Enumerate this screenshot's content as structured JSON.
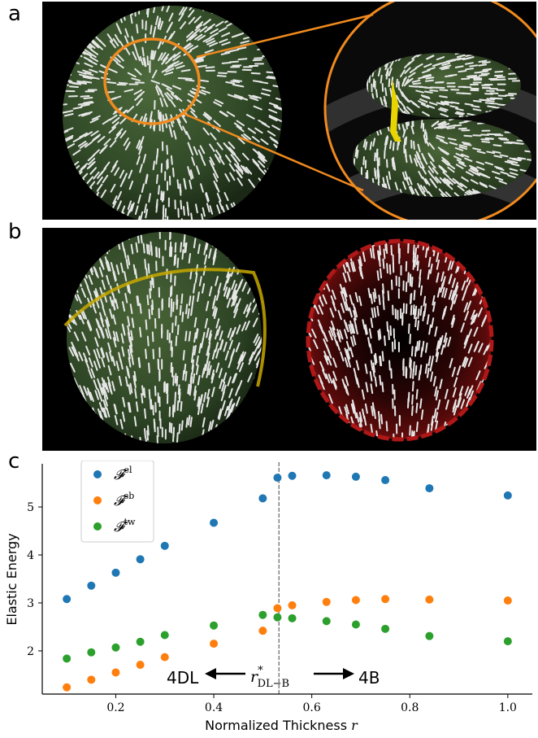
{
  "panels": {
    "a": {
      "label": "a"
    },
    "b": {
      "label": "b"
    },
    "c": {
      "label": "c"
    }
  },
  "colors": {
    "sphere_green": "#3a5530",
    "director_white": "#e6e6e6",
    "zoom_orange": "#f08a1e",
    "defect_yellow": "#e8d400",
    "defect_ring_red": "#b01818",
    "series_el": "#1f77b4",
    "series_sb": "#ff7f0e",
    "series_tw": "#2ca02c",
    "threshold_line": "#707070"
  },
  "chart_data": {
    "type": "scatter",
    "xlabel": "Normalized Thickness r",
    "ylabel": "Elastic Energy",
    "xlim": [
      0.05,
      1.05
    ],
    "ylim": [
      1.1,
      5.9
    ],
    "xticks": [
      "0.2",
      "0.4",
      "0.6",
      "0.8",
      "1.0"
    ],
    "yticks": [
      "2",
      "3",
      "4",
      "5"
    ],
    "legend_location": "top-left",
    "x": [
      0.1,
      0.15,
      0.2,
      0.25,
      0.3,
      0.4,
      0.5,
      0.53,
      0.56,
      0.63,
      0.69,
      0.75,
      0.84,
      1.0
    ],
    "series": [
      {
        "name": "F^el",
        "symbol": "𝓕",
        "sup": "el",
        "color": "#1f77b4",
        "values": [
          3.08,
          3.36,
          3.63,
          3.91,
          4.19,
          4.67,
          5.18,
          5.61,
          5.65,
          5.66,
          5.63,
          5.56,
          5.39,
          5.24
        ]
      },
      {
        "name": "F^sb",
        "symbol": "𝓕",
        "sup": "sb",
        "color": "#ff7f0e",
        "values": [
          1.24,
          1.4,
          1.55,
          1.71,
          1.87,
          2.15,
          2.42,
          2.89,
          2.95,
          3.02,
          3.06,
          3.08,
          3.07,
          3.05
        ]
      },
      {
        "name": "F^tw",
        "symbol": "𝓕",
        "sup": "tw",
        "color": "#2ca02c",
        "values": [
          1.84,
          1.97,
          2.07,
          2.19,
          2.33,
          2.53,
          2.75,
          2.7,
          2.68,
          2.62,
          2.55,
          2.46,
          2.31,
          2.2
        ]
      }
    ],
    "vline": {
      "x": 0.533
    },
    "annotations": {
      "left_phase": "4DL",
      "right_phase": "4B",
      "r_star": "r",
      "r_star_sup": "*",
      "r_star_sub": "DL−B"
    }
  }
}
